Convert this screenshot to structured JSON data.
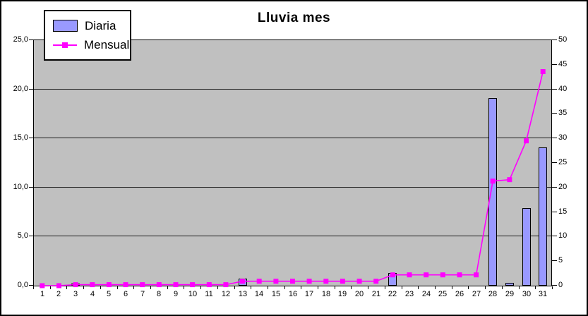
{
  "chart": {
    "title": "Lluvia mes",
    "legend_items": [
      {
        "label": "Diaria",
        "swatch": "bar-swatch-icon",
        "color": "#9999ff"
      },
      {
        "label": "Mensual",
        "swatch": "line-swatch-icon",
        "color": "#ff00ff"
      }
    ]
  },
  "chart_data": {
    "type": "bar+line",
    "title": "Lluvia mes",
    "categories": [
      "1",
      "2",
      "3",
      "4",
      "5",
      "6",
      "7",
      "8",
      "9",
      "10",
      "11",
      "12",
      "13",
      "14",
      "15",
      "16",
      "17",
      "18",
      "19",
      "20",
      "21",
      "22",
      "23",
      "24",
      "25",
      "26",
      "27",
      "28",
      "29",
      "30",
      "31"
    ],
    "series": [
      {
        "name": "Diaria",
        "type": "bar",
        "axis": "left",
        "color": "#9999ff",
        "values": [
          0,
          0,
          0.2,
          0,
          0,
          0,
          0,
          0,
          0,
          0,
          0,
          0,
          0.7,
          0,
          0,
          0,
          0,
          0,
          0,
          0,
          0,
          1.3,
          0,
          0,
          0,
          0,
          0,
          19.1,
          0.3,
          7.9,
          14.1
        ]
      },
      {
        "name": "Mensual",
        "type": "line",
        "axis": "right",
        "color": "#ff00ff",
        "values": [
          0,
          0,
          0.2,
          0.2,
          0.2,
          0.2,
          0.2,
          0.2,
          0.2,
          0.2,
          0.2,
          0.2,
          0.9,
          0.9,
          0.9,
          0.9,
          0.9,
          0.9,
          0.9,
          0.9,
          0.9,
          2.2,
          2.2,
          2.2,
          2.2,
          2.2,
          2.2,
          21.3,
          21.6,
          29.5,
          43.6
        ]
      }
    ],
    "left_axis": {
      "min": 0,
      "max": 25,
      "tick_labels": [
        "25,0",
        "20,0",
        "15,0",
        "10,0",
        "5,0",
        "0,0"
      ]
    },
    "right_axis": {
      "min": 0,
      "max": 50,
      "tick_labels": [
        "50",
        "45",
        "40",
        "35",
        "30",
        "25",
        "20",
        "15",
        "10",
        "5",
        "0"
      ]
    },
    "xlabel": "",
    "ylabel": "",
    "grid": true,
    "plot_bg": "#c0c0c0",
    "legend_position": "top-left"
  }
}
